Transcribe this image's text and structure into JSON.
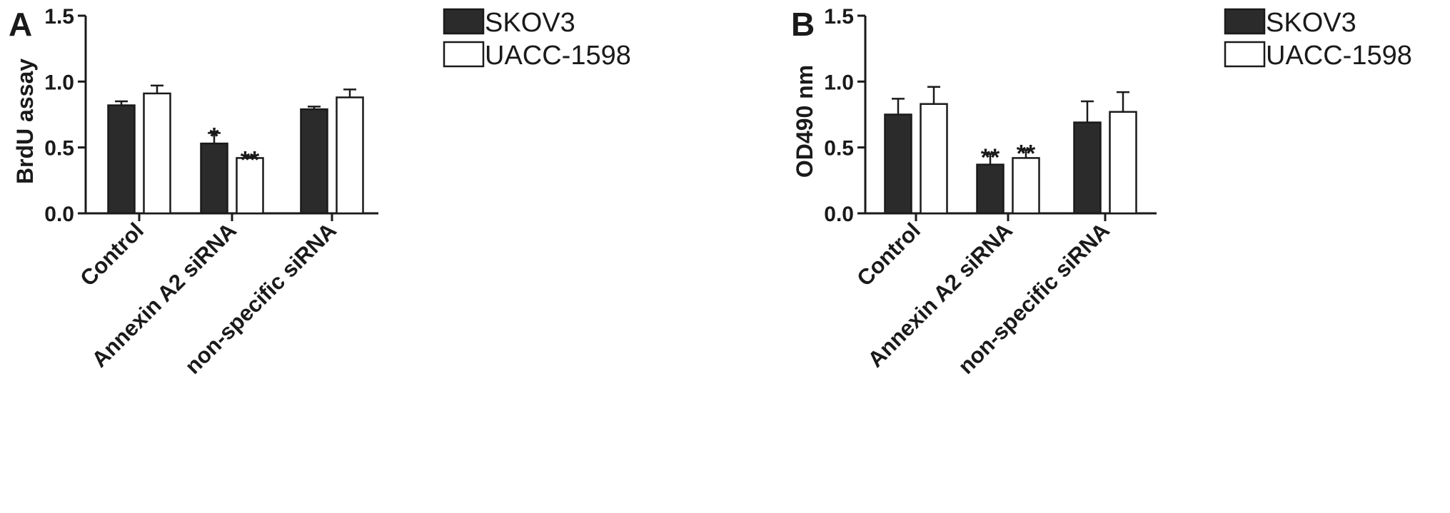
{
  "chart_data": [
    {
      "type": "bar",
      "panel": "A",
      "ylabel": "BrdU assay",
      "ylim": [
        0,
        1.5
      ],
      "yticks": [
        "0.0",
        "0.5",
        "1.0",
        "1.5"
      ],
      "categories": [
        "Control",
        "Annexin A2 siRNA",
        "non-specific siRNA"
      ],
      "series": [
        {
          "name": "SKOV3",
          "color": "#2b2b2b",
          "values": [
            0.82,
            0.53,
            0.79
          ],
          "errors": [
            0.03,
            0.08,
            0.02
          ],
          "significance": [
            "",
            "*",
            ""
          ]
        },
        {
          "name": "UACC-1598",
          "color": "#ffffff",
          "values": [
            0.91,
            0.42,
            0.88
          ],
          "errors": [
            0.06,
            0.01,
            0.06
          ],
          "significance": [
            "",
            "**",
            ""
          ]
        }
      ],
      "legend_position": "top-right",
      "grid": false
    },
    {
      "type": "bar",
      "panel": "B",
      "ylabel": "OD490 nm",
      "ylim": [
        0,
        1.5
      ],
      "yticks": [
        "0.0",
        "0.5",
        "1.0",
        "1.5"
      ],
      "categories": [
        "Control",
        "Annexin A2 siRNA",
        "non-specific siRNA"
      ],
      "series": [
        {
          "name": "SKOV3",
          "color": "#2b2b2b",
          "values": [
            0.75,
            0.37,
            0.69
          ],
          "errors": [
            0.12,
            0.08,
            0.16
          ],
          "significance": [
            "",
            "**",
            ""
          ]
        },
        {
          "name": "UACC-1598",
          "color": "#ffffff",
          "values": [
            0.83,
            0.42,
            0.77
          ],
          "errors": [
            0.13,
            0.06,
            0.15
          ],
          "significance": [
            "",
            "**",
            ""
          ]
        }
      ],
      "legend_position": "top-right",
      "grid": false
    }
  ]
}
